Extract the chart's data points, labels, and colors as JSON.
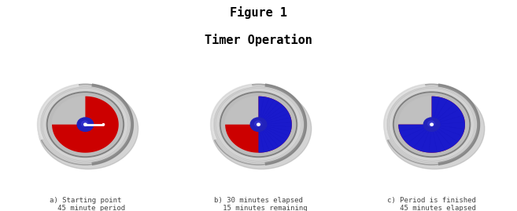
{
  "title_line1": "Figure 1",
  "title_line2": "Timer Operation",
  "title_fontsize": 11,
  "background_color": "#ffffff",
  "fig_background": "#ffffff",
  "panels": [
    {
      "label": "a) Starting point\n   45 minute period",
      "elapsed_minutes": 0,
      "period_minutes": 45,
      "total_minutes": 60
    },
    {
      "label": "b) 30 minutes elapsed\n   15 minutes remaining",
      "elapsed_minutes": 30,
      "period_minutes": 45,
      "total_minutes": 60
    },
    {
      "label": "c) Period is finished\n   45 minutes elapsed",
      "elapsed_minutes": 45,
      "period_minutes": 45,
      "total_minutes": 60
    }
  ],
  "colors": {
    "outer_edge": "#888888",
    "outer_ring": "#c8c8c8",
    "outer_ring_hi": "#e8e8e8",
    "face_grey": "#c0c0c0",
    "face_grey_dark": "#a8a8a8",
    "blue": "#1a1acc",
    "blue_light": "#3333dd",
    "red": "#cc0000",
    "white": "#ffffff",
    "hub_blue": "#2222bb",
    "shadow": "#999999"
  },
  "label_fontsize": 6.5,
  "label_color": "#444444"
}
